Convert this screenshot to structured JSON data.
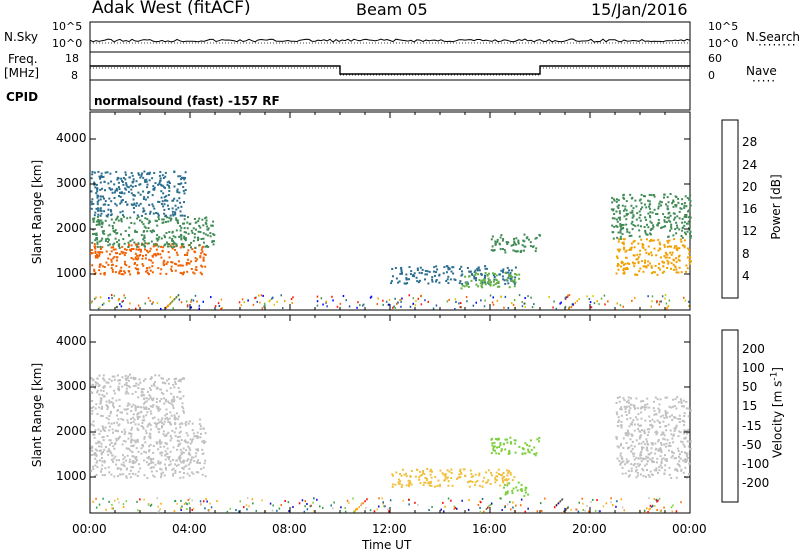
{
  "header": {
    "title": "Adak West (fitACF)",
    "beam": "Beam 05",
    "date": "15/Jan/2016"
  },
  "strips": {
    "nsky": {
      "label": "N.Sky",
      "ticks": [
        "10^5",
        "10^0"
      ]
    },
    "nsearch": {
      "label": "N.Search",
      "ticks": [
        "10^5",
        "10^0"
      ]
    },
    "freq": {
      "label_line1": "Freq.",
      "label_line2": "[MHz]",
      "ticks": [
        "18",
        "8"
      ]
    },
    "nave": {
      "label": "Nave",
      "ticks": [
        "60",
        "0"
      ]
    },
    "cpid": {
      "label": "CPID",
      "value": "normalsound (fast) -157 RF"
    }
  },
  "colors": {
    "power_scale": [
      "#0000ff",
      "#1d4fa8",
      "#2b6e8f",
      "#3f8a55",
      "#60b040",
      "#d8c800",
      "#f0a000",
      "#f06000",
      "#ff1a00"
    ],
    "velocity_scale": [
      "#ff0000",
      "#ff6a00",
      "#ffa500",
      "#f0c040",
      "#c8c8c8",
      "#7ccf3c",
      "#2f9a4a",
      "#1a6a9a",
      "#1010c0"
    ],
    "ground_gray": "#c0c0c0"
  },
  "chart_data": [
    {
      "type": "heatmap",
      "title": "",
      "xlabel": "Time UT",
      "ylabel": "Slant Range [km]",
      "x_ticks": [
        "00:00",
        "04:00",
        "08:00",
        "12:00",
        "16:00",
        "20:00",
        "00:00"
      ],
      "y_ticks": [
        "1000",
        "2000",
        "3000",
        "4000"
      ],
      "ylim": [
        200,
        4600
      ],
      "colorbar": {
        "label": "Power [dB]",
        "ticks": [
          "4",
          "8",
          "12",
          "16",
          "20",
          "24",
          "28"
        ],
        "range": [
          0,
          30
        ]
      },
      "echo_regions": [
        {
          "t_start_h": 0.0,
          "t_end_h": 4.6,
          "range_km": [
            1000,
            1700
          ],
          "value_db": 26
        },
        {
          "t_start_h": 0.0,
          "t_end_h": 5.0,
          "range_km": [
            1600,
            2300
          ],
          "value_db": 12
        },
        {
          "t_start_h": 0.0,
          "t_end_h": 3.8,
          "range_km": [
            2300,
            3300
          ],
          "value_db": 8
        },
        {
          "t_start_h": 12.0,
          "t_end_h": 17.0,
          "range_km": [
            800,
            1200
          ],
          "value_db": 6
        },
        {
          "t_start_h": 16.0,
          "t_end_h": 18.0,
          "range_km": [
            1500,
            1900
          ],
          "value_db": 10
        },
        {
          "t_start_h": 14.8,
          "t_end_h": 17.2,
          "range_km": [
            700,
            1050
          ],
          "value_db": 14
        },
        {
          "t_start_h": 21.0,
          "t_end_h": 24.0,
          "range_km": [
            1000,
            1800
          ],
          "value_db": 24
        },
        {
          "t_start_h": 20.8,
          "t_end_h": 24.0,
          "range_km": [
            1800,
            2800
          ],
          "value_db": 10
        }
      ]
    },
    {
      "type": "heatmap",
      "title": "",
      "xlabel": "Time UT",
      "ylabel": "Slant Range [km]",
      "x_ticks": [
        "00:00",
        "04:00",
        "08:00",
        "12:00",
        "16:00",
        "20:00",
        "00:00"
      ],
      "y_ticks": [
        "1000",
        "2000",
        "3000",
        "4000"
      ],
      "ylim": [
        200,
        4600
      ],
      "colorbar": {
        "label": "Velocity [m s^-1]",
        "ticks": [
          "200",
          "100",
          "50",
          "15",
          "-15",
          "-50",
          "-100",
          "-200"
        ],
        "range": [
          -250,
          250
        ]
      },
      "echo_regions": [
        {
          "t_start_h": 0.0,
          "t_end_h": 4.6,
          "range_km": [
            1000,
            2300
          ],
          "value_ms": 0,
          "ground_scatter": true
        },
        {
          "t_start_h": 0.0,
          "t_end_h": 3.8,
          "range_km": [
            2300,
            3300
          ],
          "value_ms": 0,
          "ground_scatter": true
        },
        {
          "t_start_h": 12.0,
          "t_end_h": 17.0,
          "range_km": [
            800,
            1200
          ],
          "value_ms": -50
        },
        {
          "t_start_h": 16.0,
          "t_end_h": 18.0,
          "range_km": [
            1500,
            1900
          ],
          "value_ms": 40
        },
        {
          "t_start_h": 16.5,
          "t_end_h": 17.5,
          "range_km": [
            600,
            900
          ],
          "value_ms": 60
        },
        {
          "t_start_h": 21.0,
          "t_end_h": 24.0,
          "range_km": [
            1000,
            2800
          ],
          "value_ms": 0,
          "ground_scatter": true
        }
      ]
    }
  ]
}
